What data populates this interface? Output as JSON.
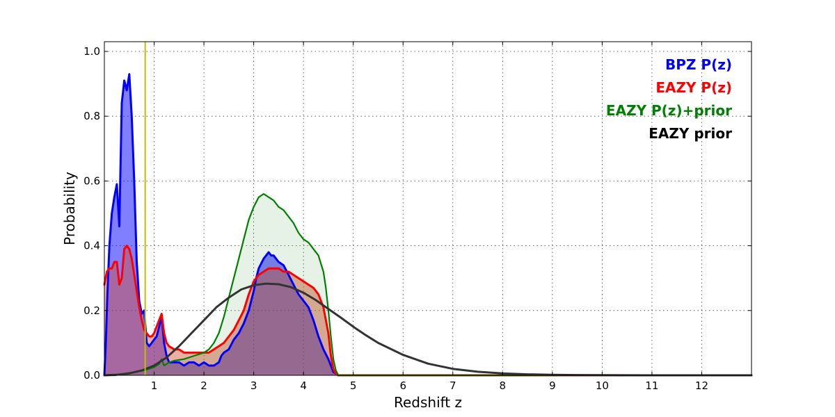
{
  "chart_data": {
    "type": "area",
    "xlabel": "Redshift z",
    "ylabel": "Probability",
    "xlim": [
      0,
      13
    ],
    "ylim": [
      0,
      1.03
    ],
    "x_ticks": [
      1,
      2,
      3,
      4,
      5,
      6,
      7,
      8,
      9,
      10,
      11,
      12
    ],
    "y_ticks": [
      0.0,
      0.2,
      0.4,
      0.6,
      0.8,
      1.0
    ],
    "x_tick_labels": [
      "1",
      "2",
      "3",
      "4",
      "5",
      "6",
      "7",
      "8",
      "9",
      "10",
      "11",
      "12"
    ],
    "y_tick_labels": [
      "0.0",
      "0.2",
      "0.4",
      "0.6",
      "0.8",
      "1.0"
    ],
    "grid": true,
    "legend_placement": "top-right",
    "vertical_line": {
      "x": 0.82,
      "color": "#bfbf00"
    },
    "series": [
      {
        "name": "BPZ P(z)",
        "color": "#0000ff",
        "fill_color": "#0000ff",
        "fill_opacity": 0.5,
        "x": [
          0,
          0.03,
          0.06,
          0.1,
          0.15,
          0.2,
          0.25,
          0.3,
          0.35,
          0.4,
          0.45,
          0.5,
          0.55,
          0.6,
          0.65,
          0.7,
          0.75,
          0.8,
          0.85,
          0.9,
          0.95,
          1.0,
          1.05,
          1.1,
          1.15,
          1.2,
          1.25,
          1.3,
          1.4,
          1.5,
          1.6,
          1.7,
          1.8,
          1.9,
          2.0,
          2.1,
          2.2,
          2.3,
          2.35,
          2.4,
          2.5,
          2.6,
          2.7,
          2.8,
          2.9,
          3.0,
          3.05,
          3.1,
          3.2,
          3.3,
          3.35,
          3.4,
          3.5,
          3.6,
          3.7,
          3.8,
          3.9,
          4.0,
          4.1,
          4.2,
          4.3,
          4.4,
          4.5,
          4.55,
          4.6,
          4.65,
          4.7,
          4.75,
          5,
          12,
          13
        ],
        "values": [
          0,
          0.1,
          0.25,
          0.4,
          0.5,
          0.55,
          0.59,
          0.46,
          0.84,
          0.91,
          0.88,
          0.93,
          0.8,
          0.6,
          0.35,
          0.23,
          0.19,
          0.2,
          0.1,
          0.09,
          0.1,
          0.11,
          0.12,
          0.15,
          0.18,
          0.1,
          0.06,
          0.04,
          0.04,
          0.04,
          0.03,
          0.04,
          0.04,
          0.03,
          0.04,
          0.03,
          0.03,
          0.04,
          0.06,
          0.07,
          0.08,
          0.11,
          0.13,
          0.16,
          0.2,
          0.26,
          0.3,
          0.33,
          0.36,
          0.38,
          0.37,
          0.37,
          0.35,
          0.34,
          0.31,
          0.28,
          0.25,
          0.23,
          0.21,
          0.17,
          0.12,
          0.08,
          0.05,
          0.03,
          0.01,
          0.005,
          0,
          0,
          0,
          0,
          0
        ]
      },
      {
        "name": "EAZY P(z)",
        "color": "#ff0000",
        "fill_color": "#d94c2e",
        "fill_opacity": 0.45,
        "x": [
          0,
          0.05,
          0.1,
          0.15,
          0.2,
          0.25,
          0.3,
          0.35,
          0.4,
          0.45,
          0.5,
          0.55,
          0.6,
          0.65,
          0.7,
          0.75,
          0.8,
          0.85,
          0.9,
          0.95,
          1.0,
          1.05,
          1.1,
          1.15,
          1.2,
          1.25,
          1.3,
          1.4,
          1.5,
          1.6,
          1.7,
          1.8,
          1.9,
          2.0,
          2.1,
          2.2,
          2.3,
          2.4,
          2.5,
          2.6,
          2.7,
          2.8,
          2.9,
          3.0,
          3.1,
          3.2,
          3.3,
          3.4,
          3.5,
          3.6,
          3.7,
          3.8,
          3.9,
          4.0,
          4.1,
          4.2,
          4.3,
          4.4,
          4.5,
          4.55,
          4.6,
          4.65,
          4.7,
          5,
          13
        ],
        "values": [
          0.28,
          0.32,
          0.33,
          0.33,
          0.35,
          0.35,
          0.28,
          0.3,
          0.39,
          0.4,
          0.39,
          0.36,
          0.31,
          0.26,
          0.21,
          0.17,
          0.14,
          0.13,
          0.12,
          0.12,
          0.13,
          0.15,
          0.17,
          0.19,
          0.13,
          0.1,
          0.09,
          0.08,
          0.08,
          0.07,
          0.07,
          0.07,
          0.07,
          0.07,
          0.07,
          0.08,
          0.09,
          0.1,
          0.12,
          0.14,
          0.17,
          0.2,
          0.25,
          0.29,
          0.31,
          0.32,
          0.33,
          0.33,
          0.33,
          0.32,
          0.32,
          0.31,
          0.3,
          0.29,
          0.28,
          0.27,
          0.25,
          0.21,
          0.13,
          0.06,
          0.02,
          0.005,
          0,
          0,
          0
        ]
      },
      {
        "name": "EAZY P(z)+prior",
        "color": "#008000",
        "fill_color": "#008000",
        "fill_opacity": 0.1,
        "x": [
          0,
          0.2,
          0.4,
          0.6,
          0.8,
          0.9,
          1.0,
          1.1,
          1.15,
          1.2,
          1.3,
          1.4,
          1.6,
          1.8,
          2.0,
          2.1,
          2.2,
          2.3,
          2.4,
          2.5,
          2.6,
          2.7,
          2.8,
          2.9,
          3.0,
          3.1,
          3.2,
          3.3,
          3.4,
          3.5,
          3.6,
          3.7,
          3.8,
          3.9,
          4.0,
          4.1,
          4.2,
          4.3,
          4.4,
          4.45,
          4.5,
          4.55,
          4.6,
          4.65,
          4.7,
          5,
          13
        ],
        "values": [
          0,
          0,
          0.005,
          0.01,
          0.015,
          0.02,
          0.025,
          0.035,
          0.05,
          0.03,
          0.04,
          0.045,
          0.05,
          0.06,
          0.07,
          0.08,
          0.1,
          0.13,
          0.18,
          0.24,
          0.3,
          0.36,
          0.42,
          0.48,
          0.52,
          0.55,
          0.56,
          0.55,
          0.54,
          0.52,
          0.51,
          0.49,
          0.47,
          0.44,
          0.42,
          0.41,
          0.39,
          0.37,
          0.32,
          0.27,
          0.2,
          0.12,
          0.05,
          0.015,
          0,
          0,
          0
        ]
      },
      {
        "name": "EAZY prior",
        "color": "#333333",
        "fill_color": "none",
        "fill_opacity": 0,
        "x": [
          0,
          0.25,
          0.5,
          0.75,
          1.0,
          1.25,
          1.5,
          1.75,
          2.0,
          2.25,
          2.5,
          2.75,
          3.0,
          3.25,
          3.5,
          3.75,
          4.0,
          4.25,
          4.5,
          4.75,
          5.0,
          5.25,
          5.5,
          6.0,
          6.5,
          7.0,
          7.5,
          8.0,
          8.5,
          9.0,
          9.5,
          10.0,
          11.0,
          12.0,
          13.0
        ],
        "values": [
          0.0,
          0.002,
          0.006,
          0.015,
          0.03,
          0.055,
          0.09,
          0.13,
          0.17,
          0.21,
          0.24,
          0.265,
          0.278,
          0.283,
          0.281,
          0.272,
          0.255,
          0.232,
          0.205,
          0.178,
          0.15,
          0.124,
          0.1,
          0.063,
          0.036,
          0.02,
          0.011,
          0.006,
          0.003,
          0.0015,
          0.0008,
          0.0004,
          0.0001,
          0.0,
          0.0
        ]
      }
    ],
    "legend": [
      {
        "label": "BPZ P(z)",
        "color": "#0000ff"
      },
      {
        "label": "EAZY P(z)",
        "color": "#ff0000"
      },
      {
        "label": "EAZY P(z)+prior",
        "color": "#008000"
      },
      {
        "label": "EAZY prior",
        "color": "#000000"
      }
    ]
  }
}
